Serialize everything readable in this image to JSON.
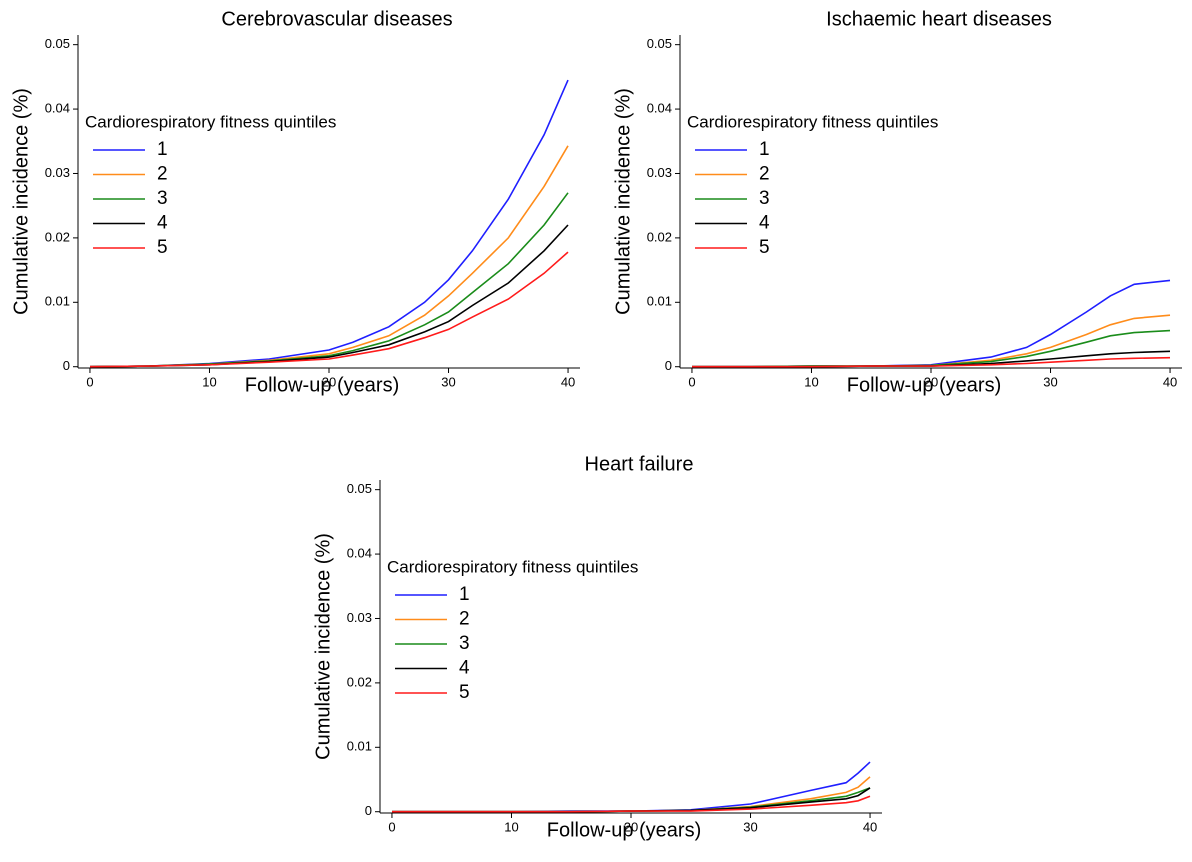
{
  "chart_data": [
    {
      "type": "line",
      "title": "Cerebrovascular diseases",
      "x_label": "Follow-up (years)",
      "y_label": "Cumulative incidence (%)",
      "legend_title": "Cardiorespiratory fitness quintiles",
      "x": [
        0,
        5,
        10,
        15,
        20,
        22,
        25,
        28,
        30,
        32,
        35,
        38,
        40
      ],
      "series": [
        {
          "name": "1",
          "color": "#1f1fff",
          "values": [
            0,
            0.0001,
            0.0005,
            0.0012,
            0.0026,
            0.0038,
            0.0062,
            0.01,
            0.0135,
            0.018,
            0.026,
            0.036,
            0.0445
          ]
        },
        {
          "name": "2",
          "color": "#ff8c1a",
          "values": [
            0,
            0.0001,
            0.0004,
            0.001,
            0.002,
            0.003,
            0.0048,
            0.008,
            0.011,
            0.0145,
            0.02,
            0.028,
            0.0343
          ]
        },
        {
          "name": "3",
          "color": "#1a8c1a",
          "values": [
            0,
            0.0001,
            0.0004,
            0.0009,
            0.0017,
            0.0025,
            0.004,
            0.0065,
            0.0085,
            0.0115,
            0.016,
            0.022,
            0.027
          ]
        },
        {
          "name": "4",
          "color": "#000000",
          "values": [
            0,
            0.0001,
            0.0003,
            0.0008,
            0.0015,
            0.0022,
            0.0034,
            0.0054,
            0.007,
            0.0095,
            0.013,
            0.018,
            0.022
          ]
        },
        {
          "name": "5",
          "color": "#ff1a1a",
          "values": [
            0,
            0.0001,
            0.0003,
            0.0007,
            0.0012,
            0.0018,
            0.0028,
            0.0045,
            0.0058,
            0.0077,
            0.0105,
            0.0145,
            0.0178
          ]
        }
      ],
      "xlim": [
        -1,
        41
      ],
      "ylim": [
        -0.0002,
        0.0515
      ],
      "xticks": [
        0,
        10,
        20,
        30,
        40
      ],
      "yticks": [
        0,
        0.01,
        0.02,
        0.03,
        0.04,
        0.05
      ]
    },
    {
      "type": "line",
      "title": "Ischaemic heart diseases",
      "x_label": "Follow-up (years)",
      "y_label": "Cumulative incidence (%)",
      "legend_title": "Cardiorespiratory fitness quintiles",
      "x": [
        0,
        5,
        10,
        15,
        20,
        25,
        28,
        30,
        33,
        35,
        37,
        40
      ],
      "series": [
        {
          "name": "1",
          "color": "#1f1fff",
          "values": [
            0,
            0,
            0.0001,
            0.0001,
            0.0003,
            0.0015,
            0.003,
            0.005,
            0.0085,
            0.011,
            0.0128,
            0.0134
          ]
        },
        {
          "name": "2",
          "color": "#ff8c1a",
          "values": [
            0,
            0,
            0.0001,
            0.0001,
            0.0002,
            0.001,
            0.002,
            0.003,
            0.005,
            0.0065,
            0.0075,
            0.008
          ]
        },
        {
          "name": "3",
          "color": "#1a8c1a",
          "values": [
            0,
            0,
            0.0001,
            0.0001,
            0.0002,
            0.0008,
            0.0016,
            0.0024,
            0.0038,
            0.0048,
            0.0053,
            0.0056
          ]
        },
        {
          "name": "4",
          "color": "#000000",
          "values": [
            0,
            0,
            0,
            0.0001,
            0.0001,
            0.0005,
            0.0009,
            0.0012,
            0.0017,
            0.002,
            0.0022,
            0.0024
          ]
        },
        {
          "name": "5",
          "color": "#ff1a1a",
          "values": [
            0,
            0,
            0,
            0.0001,
            0.0001,
            0.0003,
            0.0005,
            0.0007,
            0.001,
            0.0012,
            0.0013,
            0.0014
          ]
        }
      ],
      "xlim": [
        -1,
        41
      ],
      "ylim": [
        -0.0002,
        0.0515
      ],
      "xticks": [
        0,
        10,
        20,
        30,
        40
      ],
      "yticks": [
        0,
        0.01,
        0.02,
        0.03,
        0.04,
        0.05
      ]
    },
    {
      "type": "line",
      "title": "Heart failure",
      "x_label": "Follow-up (years)",
      "y_label": "Cumulative incidence (%)",
      "legend_title": "Cardiorespiratory fitness quintiles",
      "x": [
        0,
        5,
        10,
        15,
        20,
        25,
        30,
        35,
        38,
        39,
        40
      ],
      "series": [
        {
          "name": "1",
          "color": "#1f1fff",
          "values": [
            0,
            0,
            0,
            0.0001,
            0.0001,
            0.0003,
            0.0012,
            0.0033,
            0.0045,
            0.006,
            0.0077
          ]
        },
        {
          "name": "2",
          "color": "#ff8c1a",
          "values": [
            0,
            0,
            0,
            0,
            0.0001,
            0.0002,
            0.0008,
            0.002,
            0.003,
            0.0038,
            0.0054
          ]
        },
        {
          "name": "3",
          "color": "#1a8c1a",
          "values": [
            0,
            0,
            0,
            0,
            0.0001,
            0.0002,
            0.0007,
            0.0017,
            0.0024,
            0.003,
            0.0037
          ]
        },
        {
          "name": "4",
          "color": "#000000",
          "values": [
            0,
            0,
            0,
            0,
            0.0001,
            0.0002,
            0.0006,
            0.0015,
            0.002,
            0.0025,
            0.0037
          ]
        },
        {
          "name": "5",
          "color": "#ff1a1a",
          "values": [
            0,
            0,
            0,
            0,
            0.0001,
            0.0001,
            0.0004,
            0.001,
            0.0014,
            0.0017,
            0.0024
          ]
        }
      ],
      "xlim": [
        -1,
        41
      ],
      "ylim": [
        -0.0002,
        0.0515
      ],
      "xticks": [
        0,
        10,
        20,
        30,
        40
      ],
      "yticks": [
        0,
        0.01,
        0.02,
        0.03,
        0.04,
        0.05
      ]
    }
  ]
}
